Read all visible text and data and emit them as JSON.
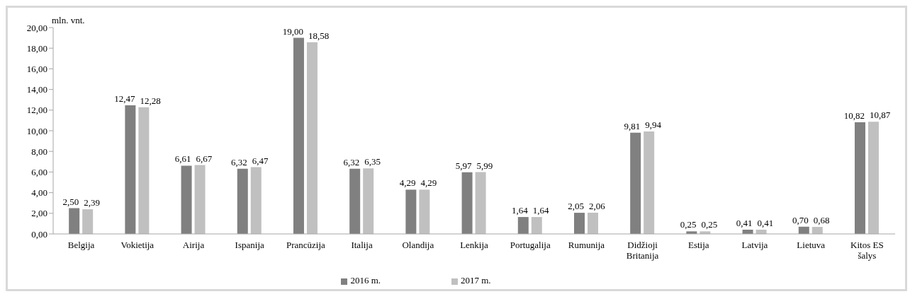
{
  "chart_data": {
    "type": "bar",
    "ylabel": "mln. vnt.",
    "categories": [
      "Belgija",
      "Vokietija",
      "Airija",
      "Ispanija",
      "Prancūzija",
      "Italija",
      "Olandija",
      "Lenkija",
      "Portugalija",
      "Rumunija",
      "Didžioji Britanija",
      "Estija",
      "Latvija",
      "Lietuva",
      "Kitos ES šalys"
    ],
    "series": [
      {
        "name": "2016 m.",
        "color": "#808080",
        "values": [
          2.5,
          12.47,
          6.61,
          6.32,
          19.0,
          6.32,
          4.29,
          5.97,
          1.64,
          2.05,
          9.81,
          0.25,
          0.41,
          0.7,
          10.82
        ],
        "value_labels": [
          "2,50",
          "12,47",
          "6,61",
          "6,32",
          "19,00",
          "6,32",
          "4,29",
          "5,97",
          "1,64",
          "2,05",
          "9,81",
          "0,25",
          "0,41",
          "0,70",
          "10,82"
        ]
      },
      {
        "name": "2017 m.",
        "color": "#c0c0c0",
        "values": [
          2.39,
          12.28,
          6.67,
          6.47,
          18.58,
          6.35,
          4.29,
          5.99,
          1.64,
          2.06,
          9.94,
          0.25,
          0.41,
          0.68,
          10.87
        ],
        "value_labels": [
          "2,39",
          "12,28",
          "6,67",
          "6,47",
          "18,58",
          "6,35",
          "4,29",
          "5,99",
          "1,64",
          "2,06",
          "9,94",
          "0,25",
          "0,41",
          "0,68",
          "10,87"
        ]
      }
    ],
    "ylim": [
      0,
      20
    ],
    "yticks": [
      {
        "value": 0,
        "label": "0,00"
      },
      {
        "value": 2,
        "label": "2,00"
      },
      {
        "value": 4,
        "label": "4,00"
      },
      {
        "value": 6,
        "label": "6,00"
      },
      {
        "value": 8,
        "label": "8,00"
      },
      {
        "value": 10,
        "label": "10,00"
      },
      {
        "value": 12,
        "label": "12,00"
      },
      {
        "value": 14,
        "label": "14,00"
      },
      {
        "value": 16,
        "label": "16,00"
      },
      {
        "value": 18,
        "label": "18,00"
      },
      {
        "value": 20,
        "label": "20,00"
      }
    ],
    "grid": false,
    "legend": "bottom"
  }
}
